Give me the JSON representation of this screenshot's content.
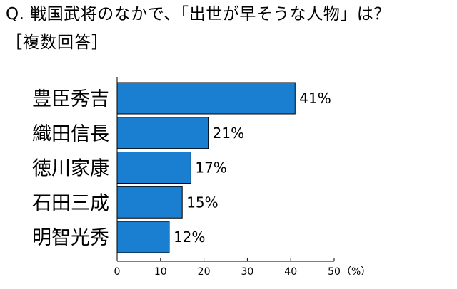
{
  "question": {
    "title": "Q. 戦国武将のなかで、「出世が早そうな人物」は？",
    "subtitle": "［複数回答］"
  },
  "colors": {
    "bar_fill": "#1a7fd0",
    "bar_stroke": "#000000",
    "axis": "#000000"
  },
  "chart_data": {
    "type": "bar",
    "orientation": "horizontal",
    "categories": [
      "豊臣秀吉",
      "織田信長",
      "徳川家康",
      "石田三成",
      "明智光秀"
    ],
    "values": [
      41,
      21,
      17,
      15,
      12
    ],
    "value_labels": [
      "41%",
      "21%",
      "17%",
      "15%",
      "12%"
    ],
    "xlim": [
      0,
      50
    ],
    "xticks": [
      0,
      10,
      20,
      30,
      40,
      50
    ],
    "xtick_labels": [
      "0",
      "10",
      "20",
      "30",
      "40",
      "50"
    ],
    "unit_label": "（%）",
    "grid": false,
    "legend": "none"
  }
}
